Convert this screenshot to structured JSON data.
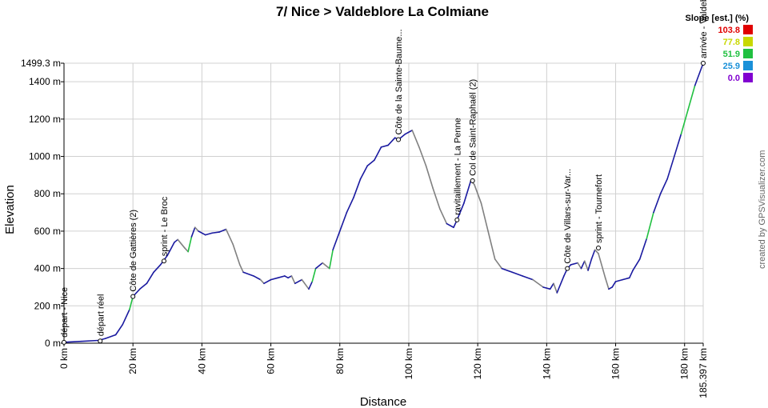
{
  "chart_data": {
    "type": "line",
    "title": "7/ Nice > Valdeblore La Colmiane",
    "xlabel": "Distance",
    "ylabel": "Elevation",
    "x_unit": "km",
    "y_unit": "m",
    "xlim": [
      0,
      185.397
    ],
    "ylim": [
      0,
      1499.3
    ],
    "x_ticks": [
      "0 km",
      "20 km",
      "40 km",
      "60 km",
      "80 km",
      "100 km",
      "120 km",
      "140 km",
      "160 km",
      "180 km",
      "185.397 km"
    ],
    "y_ticks": [
      "0 m",
      "200 m",
      "400 m",
      "600 m",
      "800 m",
      "1000 m",
      "1200 m",
      "1400 m",
      "1499.3 m"
    ],
    "grid": true,
    "profile": [
      [
        0,
        5
      ],
      [
        5,
        10
      ],
      [
        10,
        15
      ],
      [
        12,
        25
      ],
      [
        15,
        45
      ],
      [
        17,
        100
      ],
      [
        19,
        180
      ],
      [
        20,
        250
      ],
      [
        22,
        290
      ],
      [
        24,
        320
      ],
      [
        26,
        380
      ],
      [
        28,
        420
      ],
      [
        30,
        470
      ],
      [
        32,
        540
      ],
      [
        33,
        555
      ],
      [
        35,
        510
      ],
      [
        36,
        490
      ],
      [
        37,
        570
      ],
      [
        38,
        620
      ],
      [
        39,
        600
      ],
      [
        41,
        580
      ],
      [
        43,
        590
      ],
      [
        45,
        595
      ],
      [
        47,
        610
      ],
      [
        49,
        530
      ],
      [
        51,
        420
      ],
      [
        52,
        380
      ],
      [
        55,
        360
      ],
      [
        57,
        340
      ],
      [
        58,
        320
      ],
      [
        60,
        340
      ],
      [
        62,
        350
      ],
      [
        64,
        360
      ],
      [
        65,
        350
      ],
      [
        66,
        360
      ],
      [
        67,
        320
      ],
      [
        69,
        340
      ],
      [
        71,
        290
      ],
      [
        72,
        330
      ],
      [
        73,
        400
      ],
      [
        75,
        430
      ],
      [
        77,
        400
      ],
      [
        78,
        500
      ],
      [
        80,
        600
      ],
      [
        82,
        700
      ],
      [
        84,
        780
      ],
      [
        86,
        880
      ],
      [
        88,
        950
      ],
      [
        90,
        980
      ],
      [
        92,
        1050
      ],
      [
        94,
        1060
      ],
      [
        96,
        1100
      ],
      [
        97,
        1090
      ],
      [
        99,
        1120
      ],
      [
        101,
        1140
      ],
      [
        103,
        1050
      ],
      [
        105,
        950
      ],
      [
        107,
        830
      ],
      [
        109,
        720
      ],
      [
        111,
        640
      ],
      [
        113,
        620
      ],
      [
        114,
        660
      ],
      [
        116,
        750
      ],
      [
        118,
        870
      ],
      [
        119,
        850
      ],
      [
        121,
        750
      ],
      [
        123,
        600
      ],
      [
        125,
        450
      ],
      [
        127,
        400
      ],
      [
        130,
        380
      ],
      [
        133,
        360
      ],
      [
        136,
        340
      ],
      [
        139,
        300
      ],
      [
        141,
        290
      ],
      [
        142,
        320
      ],
      [
        143,
        270
      ],
      [
        145,
        360
      ],
      [
        146,
        400
      ],
      [
        147,
        420
      ],
      [
        149,
        430
      ],
      [
        150,
        400
      ],
      [
        151,
        440
      ],
      [
        152,
        390
      ],
      [
        153,
        450
      ],
      [
        154,
        500
      ],
      [
        155,
        480
      ],
      [
        157,
        350
      ],
      [
        158,
        290
      ],
      [
        159,
        300
      ],
      [
        160,
        330
      ],
      [
        162,
        340
      ],
      [
        164,
        350
      ],
      [
        165,
        390
      ],
      [
        167,
        450
      ],
      [
        169,
        560
      ],
      [
        171,
        700
      ],
      [
        173,
        800
      ],
      [
        175,
        880
      ],
      [
        177,
        1000
      ],
      [
        179,
        1120
      ],
      [
        181,
        1250
      ],
      [
        183,
        1380
      ],
      [
        185.397,
        1499.3
      ]
    ],
    "waypoints": [
      {
        "label": "départ - Nice",
        "x": 0,
        "y": 5
      },
      {
        "label": "départ réel",
        "x": 10.5,
        "y": 12
      },
      {
        "label": "Côte de Gattières (2)",
        "x": 20,
        "y": 250
      },
      {
        "label": "sprint - Le Broc",
        "x": 29,
        "y": 440
      },
      {
        "label": "Côte de la Sainte-Baume...",
        "x": 97,
        "y": 1090
      },
      {
        "label": "ravitaillement - La Penne",
        "x": 114,
        "y": 660
      },
      {
        "label": "Col de Saint-Raphaël (2)",
        "x": 118.5,
        "y": 870
      },
      {
        "label": "Côte de Villars-sur-Var...",
        "x": 146,
        "y": 400
      },
      {
        "label": "sprint - Tournefort",
        "x": 155,
        "y": 510
      },
      {
        "label": "arrivée - Valdeblore La Colmiane",
        "x": 185.397,
        "y": 1499.3
      }
    ],
    "legend": {
      "title": "Slope [est.] (%)",
      "placement": "top-right",
      "items": [
        {
          "value": "103.8",
          "color": "#e00000"
        },
        {
          "value": "77.8",
          "color": "#c8d800"
        },
        {
          "value": "51.9",
          "color": "#20c040"
        },
        {
          "value": "25.9",
          "color": "#1a90d8"
        },
        {
          "value": "0.0",
          "color": "#8000d0"
        }
      ]
    },
    "line_colors": {
      "main": "#1a1aa0",
      "descent": "#808080",
      "steep": "#20c040"
    }
  },
  "credit": "created by GPSVisualizer.com"
}
